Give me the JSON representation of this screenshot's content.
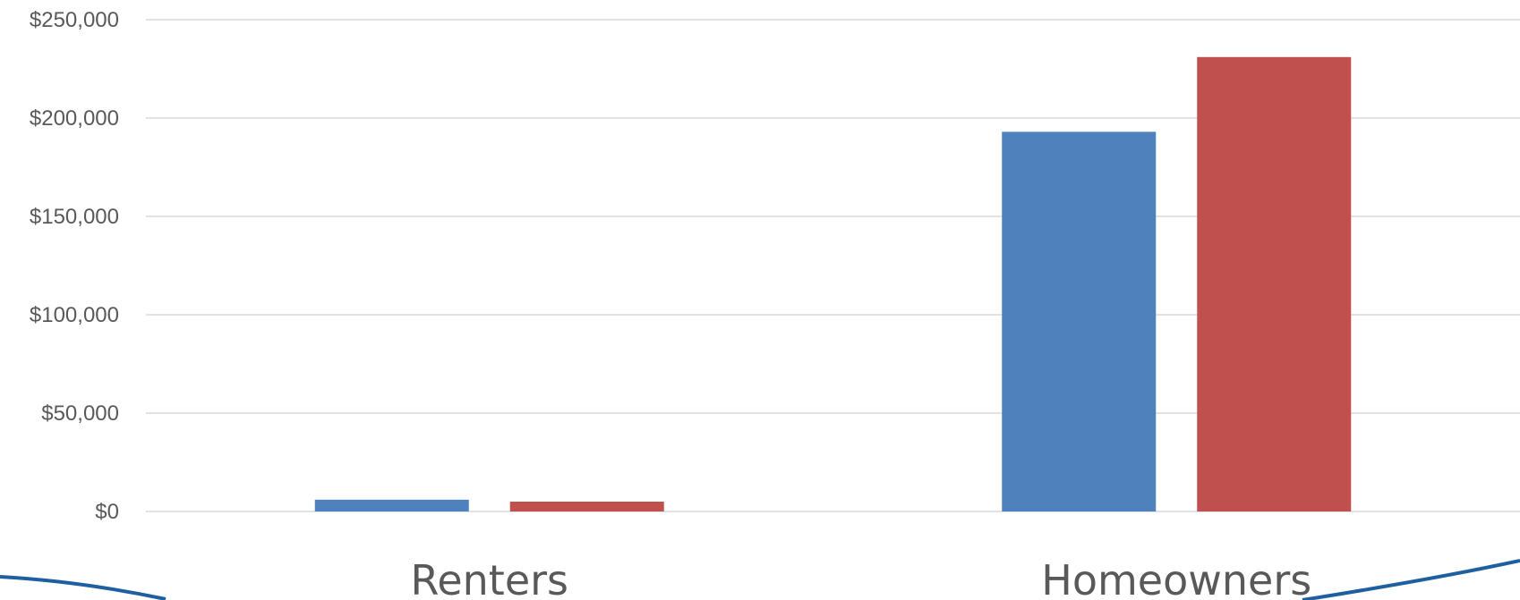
{
  "chart_data": {
    "type": "bar",
    "categories": [
      "Renters",
      "Homeowners"
    ],
    "series": [
      {
        "values": [
          6000,
          193000
        ],
        "color": "#4f81bd"
      },
      {
        "values": [
          5000,
          231000
        ],
        "color": "#c0504d"
      }
    ],
    "title": "",
    "xlabel": "",
    "ylabel": "",
    "ylim": [
      0,
      250000
    ],
    "yticks": [
      {
        "value": 0,
        "label": "$0"
      },
      {
        "value": 50000,
        "label": "$50,000"
      },
      {
        "value": 100000,
        "label": "$100,000"
      },
      {
        "value": 150000,
        "label": "$150,000"
      },
      {
        "value": 200000,
        "label": "$200,000"
      },
      {
        "value": 250000,
        "label": "$250,000"
      }
    ],
    "grid": true,
    "legend": "none",
    "decoration_color": "#1f5fa0"
  }
}
